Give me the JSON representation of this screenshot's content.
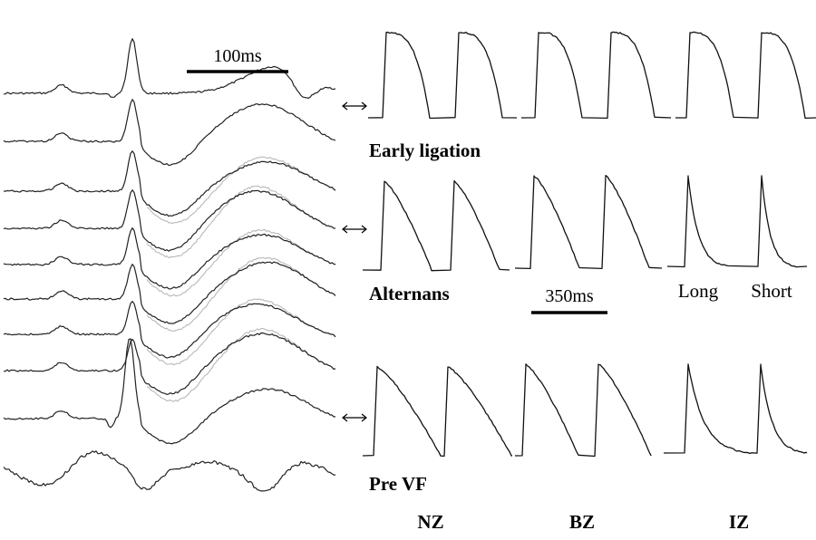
{
  "scale_bars": {
    "ecg_time": "100ms",
    "ap_time": "350ms"
  },
  "conditions": [
    {
      "label": "Early ligation"
    },
    {
      "label": "Alternans"
    },
    {
      "label": "Pre VF"
    }
  ],
  "alternans_beats": {
    "long": "Long",
    "short": "Short"
  },
  "zones": [
    "NZ",
    "BZ",
    "IZ"
  ]
}
